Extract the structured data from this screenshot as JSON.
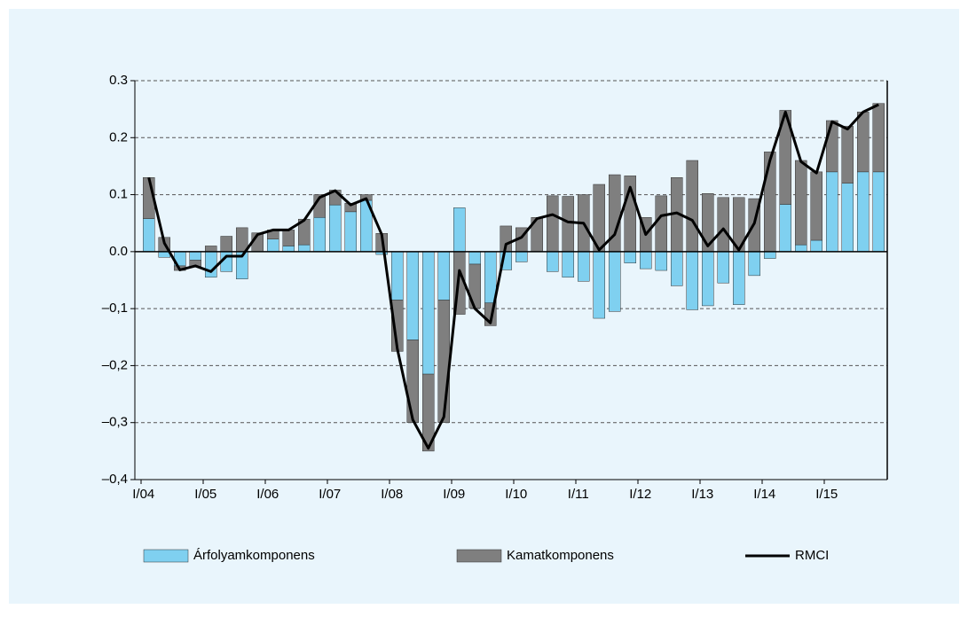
{
  "chart_data": {
    "type": "bar_line",
    "categories": [
      "I/04",
      null,
      null,
      null,
      "I/05",
      null,
      null,
      null,
      "I/06",
      null,
      null,
      null,
      "I/07",
      null,
      null,
      null,
      "I/08",
      null,
      null,
      null,
      "I/09",
      null,
      null,
      null,
      "I/10",
      null,
      null,
      null,
      "I/11",
      null,
      null,
      null,
      "I/12",
      null,
      null,
      null,
      "I/13",
      null,
      null,
      null,
      "I/14",
      null,
      null,
      null,
      "I/15",
      null,
      null,
      null
    ],
    "series": [
      {
        "name": "Árfolyamkomponens",
        "type": "bar",
        "color": "#7fd0f0",
        "values": [
          0.058,
          -0.01,
          -0.025,
          -0.015,
          -0.045,
          -0.035,
          -0.048,
          0.0,
          0.022,
          0.01,
          0.012,
          0.06,
          0.082,
          0.07,
          0.09,
          -0.005,
          -0.085,
          -0.155,
          -0.215,
          -0.085,
          0.077,
          -0.022,
          -0.09,
          -0.032,
          -0.018,
          0.0,
          -0.035,
          -0.045,
          -0.052,
          -0.117,
          -0.105,
          -0.02,
          -0.03,
          -0.033,
          -0.06,
          -0.102,
          -0.095,
          -0.055,
          -0.093,
          -0.042,
          -0.012,
          0.083,
          0.012,
          0.02,
          0.14,
          0.12,
          0.14,
          0.14
        ]
      },
      {
        "name": "Kamatkomponens",
        "type": "bar",
        "color": "#7f7f7f",
        "values": [
          0.072,
          0.025,
          -0.008,
          -0.012,
          0.01,
          0.027,
          0.042,
          0.033,
          0.016,
          0.028,
          0.045,
          0.04,
          0.026,
          0.015,
          0.01,
          0.032,
          -0.09,
          -0.145,
          -0.135,
          -0.215,
          -0.11,
          -0.077,
          -0.04,
          0.045,
          0.042,
          0.06,
          0.098,
          0.097,
          0.1,
          0.118,
          0.135,
          0.133,
          0.06,
          0.098,
          0.13,
          0.16,
          0.102,
          0.095,
          0.095,
          0.093,
          0.175,
          0.165,
          0.148,
          0.12,
          0.09,
          0.1,
          0.105,
          0.12
        ]
      },
      {
        "name": "RMCI",
        "type": "line",
        "color": "#000000",
        "values": [
          0.13,
          0.015,
          -0.032,
          -0.025,
          -0.035,
          -0.008,
          -0.008,
          0.03,
          0.038,
          0.038,
          0.055,
          0.095,
          0.107,
          0.082,
          0.093,
          0.03,
          -0.17,
          -0.295,
          -0.345,
          -0.29,
          -0.033,
          -0.1,
          -0.125,
          0.013,
          0.025,
          0.058,
          0.065,
          0.052,
          0.05,
          0.003,
          0.03,
          0.113,
          0.03,
          0.063,
          0.068,
          0.055,
          0.01,
          0.04,
          0.003,
          0.05,
          0.16,
          0.245,
          0.158,
          0.138,
          0.228,
          0.215,
          0.245,
          0.258
        ]
      }
    ],
    "ylim": [
      -0.4,
      0.3
    ],
    "yticks": [
      {
        "value": -0.4,
        "label": "–0,4"
      },
      {
        "value": -0.3,
        "label": "–0,3"
      },
      {
        "value": -0.2,
        "label": "–0,2"
      },
      {
        "value": -0.1,
        "label": "–0,1"
      },
      {
        "value": 0,
        "label": "0.0"
      },
      0.1,
      0.2,
      0.3
    ],
    "grid": true,
    "legend": "bottom"
  }
}
